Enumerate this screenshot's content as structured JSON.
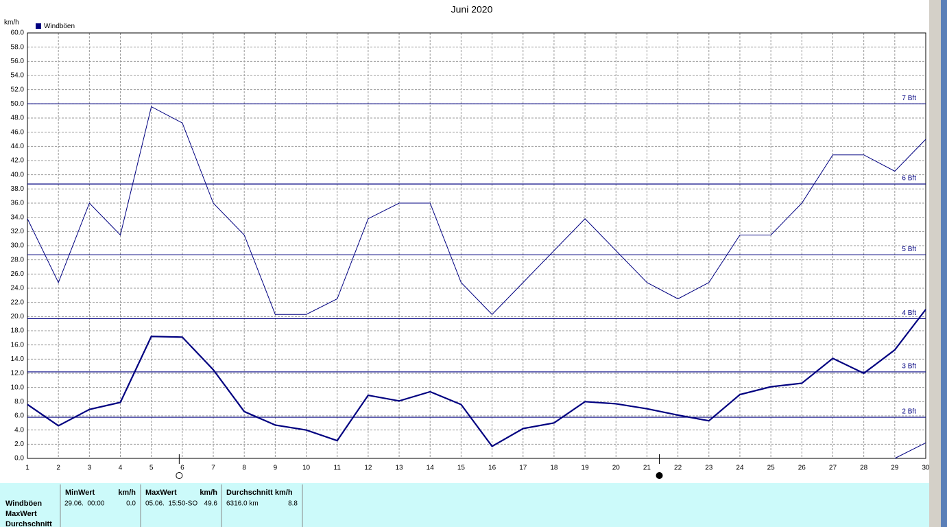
{
  "chart_data": {
    "type": "line",
    "title": "Juni 2020",
    "y_unit": "km/h",
    "x": [
      1,
      2,
      3,
      4,
      5,
      6,
      7,
      8,
      9,
      10,
      11,
      12,
      13,
      14,
      15,
      16,
      17,
      18,
      19,
      20,
      21,
      22,
      23,
      24,
      25,
      26,
      27,
      28,
      29,
      30
    ],
    "xlim": [
      1,
      30
    ],
    "xticks": [
      1,
      2,
      3,
      4,
      5,
      6,
      7,
      8,
      9,
      10,
      11,
      12,
      13,
      14,
      15,
      16,
      17,
      18,
      19,
      20,
      21,
      22,
      23,
      24,
      25,
      26,
      27,
      28,
      29,
      30
    ],
    "ylim": [
      0,
      60
    ],
    "yticks": [
      {
        "value": 0,
        "label": "0.0"
      },
      {
        "value": 2,
        "label": "2.0"
      },
      {
        "value": 4,
        "label": "4.0"
      },
      {
        "value": 6,
        "label": "6.0"
      },
      {
        "value": 8,
        "label": "8.0"
      },
      {
        "value": 10,
        "label": "10.0"
      },
      {
        "value": 12,
        "label": "12.0"
      },
      {
        "value": 14,
        "label": "14.0"
      },
      {
        "value": 16,
        "label": "16.0"
      },
      {
        "value": 18,
        "label": "18.0"
      },
      {
        "value": 20,
        "label": "20.0"
      },
      {
        "value": 22,
        "label": "22.0"
      },
      {
        "value": 24,
        "label": "24.0"
      },
      {
        "value": 26,
        "label": "26.0"
      },
      {
        "value": 28,
        "label": "28.0"
      },
      {
        "value": 30,
        "label": "30.0"
      },
      {
        "value": 32,
        "label": "32.0"
      },
      {
        "value": 34,
        "label": "34.0"
      },
      {
        "value": 36,
        "label": "36.0"
      },
      {
        "value": 38,
        "label": "38.0"
      },
      {
        "value": 40,
        "label": "40.0"
      },
      {
        "value": 42,
        "label": "42.0"
      },
      {
        "value": 44,
        "label": "44.0"
      },
      {
        "value": 46,
        "label": "46.0"
      },
      {
        "value": 48,
        "label": "48.0"
      },
      {
        "value": 50,
        "label": "50.0"
      },
      {
        "value": 52,
        "label": "52.0"
      },
      {
        "value": 54,
        "label": "54.0"
      },
      {
        "value": 56,
        "label": "56.0"
      },
      {
        "value": 58,
        "label": "58.0"
      },
      {
        "value": 60,
        "label": "60.0"
      }
    ],
    "grid": true,
    "series": [
      {
        "name": "Windböen",
        "color": "#000080",
        "values": [
          7.6,
          4.6,
          6.9,
          7.9,
          17.2,
          17.1,
          12.5,
          6.6,
          4.7,
          4.0,
          2.5,
          8.9,
          8.1,
          9.4,
          7.6,
          1.7,
          4.2,
          5.0,
          8.0,
          7.7,
          7.0,
          6.1,
          5.3,
          9.0,
          10.1,
          10.6,
          14.1,
          12.0,
          15.3,
          21.0
        ]
      },
      {
        "color": "#000080",
        "values": [
          33.8,
          24.8,
          36.0,
          31.5,
          49.6,
          47.3,
          36.0,
          31.5,
          20.3,
          20.3,
          22.5,
          33.8,
          36.0,
          36.0,
          24.8,
          20.3,
          24.8,
          29.3,
          33.8,
          29.3,
          24.8,
          22.5,
          24.8,
          31.5,
          31.5,
          36.0,
          42.8,
          42.8,
          40.5,
          45.0
        ]
      },
      {
        "color": "#000080",
        "values": [
          null,
          null,
          null,
          null,
          null,
          null,
          null,
          null,
          null,
          null,
          null,
          null,
          null,
          null,
          null,
          null,
          null,
          null,
          null,
          null,
          null,
          null,
          null,
          null,
          null,
          null,
          null,
          null,
          0.0,
          2.2
        ]
      }
    ],
    "reference_lines": [
      {
        "value": 5.8,
        "label": "2 Bft"
      },
      {
        "value": 12.2,
        "label": "3 Bft"
      },
      {
        "value": 19.7,
        "label": "4 Bft"
      },
      {
        "value": 28.7,
        "label": "5 Bft"
      },
      {
        "value": 38.7,
        "label": "6 Bft"
      },
      {
        "value": 50.0,
        "label": "7 Bft"
      }
    ],
    "moon_marks": [
      {
        "x": 5.9,
        "phase": "full"
      },
      {
        "x": 21.4,
        "phase": "new"
      }
    ]
  },
  "table": {
    "row_labels": [
      "Windböen",
      "MaxWert",
      "Durchschnitt"
    ],
    "headers": [
      "MinWert",
      "km/h",
      "MaxWert",
      "km/h",
      "Durchschnitt km/h"
    ],
    "rows": [
      [
        "29.06.  00:00",
        "0.0",
        "05.06.  15:50-SO",
        "49.6",
        "6316.0 km",
        "8.8"
      ]
    ]
  }
}
